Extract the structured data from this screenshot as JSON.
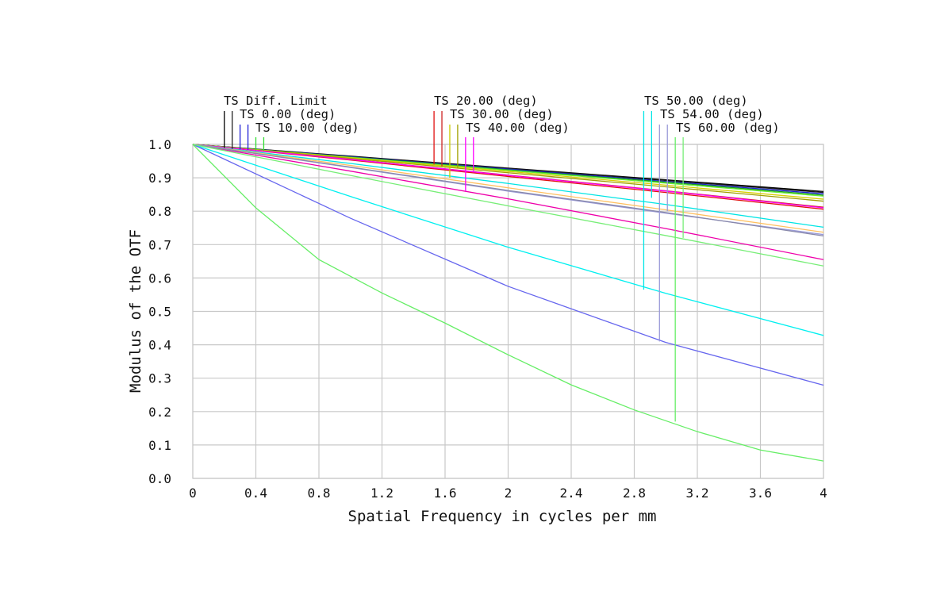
{
  "chart_data": {
    "type": "line",
    "xlabel": "Spatial Frequency in cycles per mm",
    "ylabel": "Modulus of the OTF",
    "xlim": [
      0,
      4
    ],
    "ylim": [
      0,
      1.0
    ],
    "grid": true,
    "x_ticks": [
      "0",
      "0.4",
      "0.8",
      "1.2",
      "1.6",
      "2",
      "2.4",
      "2.8",
      "3.2",
      "3.6",
      "4"
    ],
    "y_ticks": [
      "0.0",
      "0.1",
      "0.2",
      "0.3",
      "0.4",
      "0.5",
      "0.6",
      "0.7",
      "0.8",
      "0.9",
      "1.0"
    ],
    "legend_groups": [
      [
        "TS Diff. Limit",
        "TS 0.00 (deg)",
        "TS 10.00 (deg)"
      ],
      [
        "TS 20.00 (deg)",
        "TS 30.00 (deg)",
        "TS 40.00 (deg)"
      ],
      [
        "TS 50.00 (deg)",
        "TS 54.00 (deg)",
        "TS 60.00 (deg)"
      ]
    ],
    "series": [
      {
        "name": "TS Diff. Limit",
        "color": "#000000",
        "x": [
          0,
          1,
          2,
          3,
          4
        ],
        "y": [
          1.0,
          0.965,
          0.929,
          0.894,
          0.859
        ]
      },
      {
        "name": "TS 0.00 (deg)",
        "color": "#1a1a1a",
        "x": [
          0,
          1,
          2,
          3,
          4
        ],
        "y": [
          1.0,
          0.964,
          0.928,
          0.892,
          0.856
        ]
      },
      {
        "name": "TS 0.00 (deg)",
        "color": "#1f1fd6",
        "x": [
          0,
          1,
          2,
          3,
          4
        ],
        "y": [
          1.0,
          0.963,
          0.926,
          0.889,
          0.852
        ]
      },
      {
        "name": "TS 10.00 (deg)",
        "color": "#1c9e1c",
        "x": [
          0,
          1,
          2,
          3,
          4
        ],
        "y": [
          1.0,
          0.962,
          0.924,
          0.887,
          0.848
        ]
      },
      {
        "name": "TS 10.00 (deg)",
        "color": "#66ee33",
        "x": [
          0,
          1,
          2,
          3,
          4
        ],
        "y": [
          1.0,
          0.961,
          0.922,
          0.884,
          0.845
        ]
      },
      {
        "name": "TS 20.00 (deg)",
        "color": "#e01010",
        "x": [
          0,
          1,
          2,
          3,
          4
        ],
        "y": [
          1.0,
          0.953,
          0.904,
          0.856,
          0.806
        ]
      },
      {
        "name": "TS 20.00 (deg)",
        "color": "#cc2222",
        "x": [
          0,
          1,
          2,
          3,
          4
        ],
        "y": [
          1.0,
          0.955,
          0.908,
          0.861,
          0.812
        ]
      },
      {
        "name": "TS 30.00 (deg)",
        "color": "#d8d000",
        "x": [
          0,
          1,
          2,
          3,
          4
        ],
        "y": [
          1.0,
          0.96,
          0.919,
          0.878,
          0.836
        ]
      },
      {
        "name": "TS 30.00 (deg)",
        "color": "#a0a000",
        "x": [
          0,
          1,
          2,
          3,
          4
        ],
        "y": [
          1.0,
          0.958,
          0.915,
          0.873,
          0.83
        ]
      },
      {
        "name": "TS 40.00 (deg)",
        "color": "#ff00ff",
        "x": [
          0,
          1,
          2,
          3,
          4
        ],
        "y": [
          1.0,
          0.955,
          0.907,
          0.86,
          0.81
        ]
      },
      {
        "name": "TS 40.00 (deg)",
        "color": "#ee00aa",
        "x": [
          0,
          1,
          2,
          3,
          4
        ],
        "y": [
          1.0,
          0.92,
          0.837,
          0.748,
          0.655
        ]
      },
      {
        "name": "TS 50.00 (deg)",
        "color": "#00e5e5",
        "x": [
          0,
          1,
          2,
          3,
          4
        ],
        "y": [
          1.0,
          0.943,
          0.883,
          0.82,
          0.752
        ]
      },
      {
        "name": "TS 50.00 (deg)",
        "color": "#00f0f0",
        "x": [
          0,
          1,
          2,
          3,
          4
        ],
        "y": [
          1.0,
          0.844,
          0.692,
          0.554,
          0.428
        ]
      },
      {
        "name": "TS 54.00 (deg)",
        "color": "#9a9ad8",
        "x": [
          0,
          1,
          2,
          3,
          4
        ],
        "y": [
          1.0,
          0.931,
          0.86,
          0.794,
          0.73
        ]
      },
      {
        "name": "TS 54.00 (deg)",
        "color": "#6666ee",
        "x": [
          0,
          1,
          2,
          3,
          4
        ],
        "y": [
          1.0,
          0.779,
          0.575,
          0.407,
          0.279
        ]
      },
      {
        "name": "TS 60.00 (deg)",
        "color": "#ffc060",
        "x": [
          0,
          1,
          2,
          3,
          4
        ],
        "y": [
          1.0,
          0.937,
          0.87,
          0.804,
          0.737
        ]
      },
      {
        "name": "TS 60.00 (deg)",
        "color": "#8888aa",
        "x": [
          0,
          1,
          2,
          3,
          4
        ],
        "y": [
          1.0,
          0.932,
          0.862,
          0.796,
          0.726
        ]
      },
      {
        "name": "TS 60.00 (deg)",
        "color": "#77ee77",
        "x": [
          0,
          1,
          2,
          3,
          4
        ],
        "y": [
          1.0,
          0.907,
          0.816,
          0.727,
          0.636
        ]
      },
      {
        "name": "TS 60.00 (deg)",
        "color": "#66ee66",
        "x": [
          0,
          0.4,
          0.8,
          1.2,
          1.6,
          2.0,
          2.4,
          2.8,
          3.2,
          3.6,
          4.0
        ],
        "y": [
          1.0,
          0.81,
          0.655,
          0.555,
          0.465,
          0.37,
          0.28,
          0.205,
          0.14,
          0.085,
          0.052
        ]
      }
    ],
    "leaders": [
      {
        "color": "#000000",
        "x": 0.2,
        "y": 0.99
      },
      {
        "color": "#222222",
        "x": 0.25,
        "y": 0.987
      },
      {
        "color": "#1f1fd6",
        "x": 0.3,
        "y": 0.985
      },
      {
        "color": "#1f1fd6",
        "x": 0.35,
        "y": 0.984
      },
      {
        "color": "#33dd33",
        "x": 0.4,
        "y": 0.982
      },
      {
        "color": "#33dd33",
        "x": 0.45,
        "y": 0.98
      },
      {
        "color": "#e01010",
        "x": 1.53,
        "y": 0.94
      },
      {
        "color": "#cc2222",
        "x": 1.58,
        "y": 0.935
      },
      {
        "color": "#c8c800",
        "x": 1.63,
        "y": 0.9
      },
      {
        "color": "#a0a000",
        "x": 1.68,
        "y": 0.93
      },
      {
        "color": "#ff00ff",
        "x": 1.73,
        "y": 0.86
      },
      {
        "color": "#ff00ff",
        "x": 1.78,
        "y": 0.92
      },
      {
        "color": "#00e5e5",
        "x": 2.86,
        "y": 0.565
      },
      {
        "color": "#00e5e5",
        "x": 2.91,
        "y": 0.84
      },
      {
        "color": "#9a9ad8",
        "x": 2.96,
        "y": 0.41
      },
      {
        "color": "#9a9ad8",
        "x": 3.01,
        "y": 0.8
      },
      {
        "color": "#66ee66",
        "x": 3.06,
        "y": 0.17
      },
      {
        "color": "#77ee77",
        "x": 3.11,
        "y": 0.72
      }
    ]
  }
}
